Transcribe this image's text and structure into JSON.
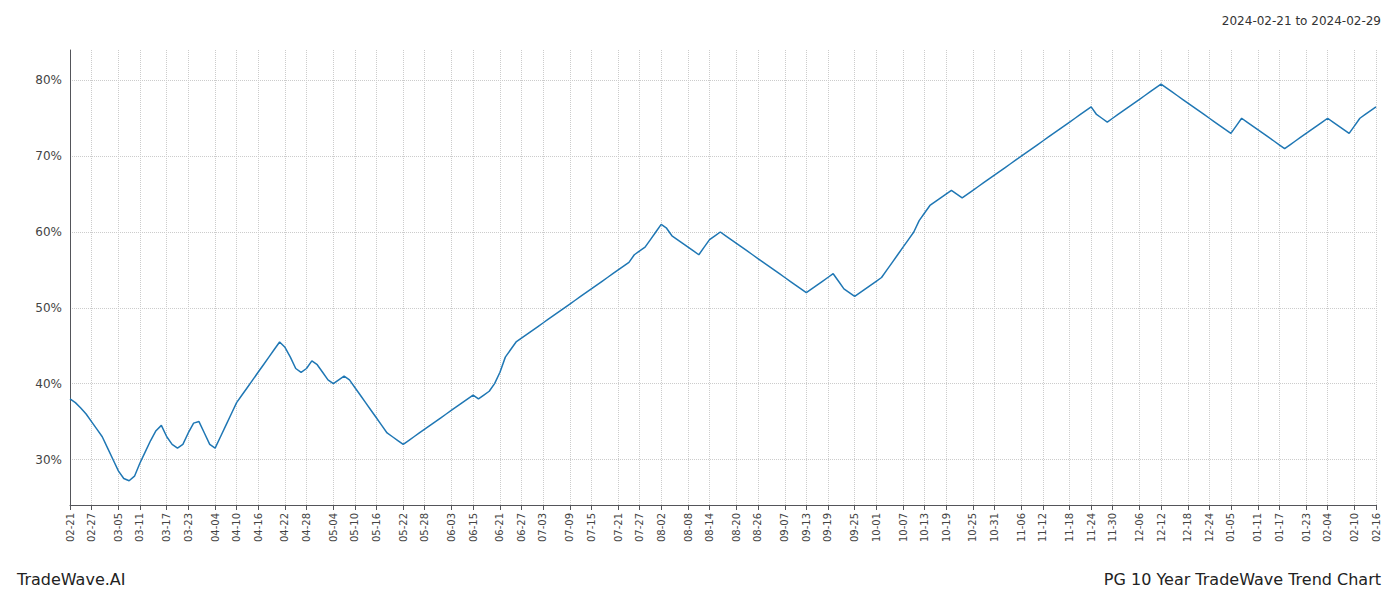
{
  "chart_data": {
    "type": "line",
    "title": "PG 10 Year TradeWave Trend Chart",
    "subtitle": "2024-02-21 to 2024-02-29",
    "annotations": [
      "TradeWave.AI"
    ],
    "categories": [
      "02-21",
      null,
      null,
      null,
      "02-27",
      null,
      null,
      null,
      null,
      "03-05",
      null,
      null,
      null,
      "03-11",
      null,
      null,
      null,
      null,
      "03-17",
      null,
      null,
      null,
      "03-23",
      null,
      null,
      null,
      null,
      "04-04",
      null,
      null,
      null,
      "04-10",
      null,
      null,
      null,
      "04-16",
      null,
      null,
      null,
      null,
      "04-22",
      null,
      null,
      null,
      "04-28",
      null,
      null,
      null,
      null,
      "05-04",
      null,
      null,
      null,
      "05-10",
      null,
      null,
      null,
      "05-16",
      null,
      null,
      null,
      null,
      "05-22",
      null,
      null,
      null,
      "05-28",
      null,
      null,
      null,
      null,
      "06-03",
      null,
      null,
      null,
      "06-15",
      null,
      null,
      null,
      null,
      "06-21",
      null,
      null,
      null,
      "06-27",
      null,
      null,
      null,
      "07-03",
      null,
      null,
      null,
      null,
      "07-09",
      null,
      null,
      null,
      "07-15",
      null,
      null,
      null,
      null,
      "07-21",
      null,
      null,
      null,
      "07-27",
      null,
      null,
      null,
      "08-02",
      null,
      null,
      null,
      null,
      "08-08",
      null,
      null,
      null,
      "08-14",
      null,
      null,
      null,
      null,
      "08-20",
      null,
      null,
      null,
      "08-26",
      null,
      null,
      null,
      null,
      "09-07",
      null,
      null,
      null,
      "09-13",
      null,
      null,
      null,
      "09-19",
      null,
      null,
      null,
      null,
      "09-25",
      null,
      null,
      null,
      "10-01",
      null,
      null,
      null,
      null,
      "10-07",
      null,
      null,
      null,
      "10-13",
      null,
      null,
      null,
      "10-19",
      null,
      null,
      null,
      null,
      "10-25",
      null,
      null,
      null,
      "10-31",
      null,
      null,
      null,
      null,
      "11-06",
      null,
      null,
      null,
      "11-12",
      null,
      null,
      null,
      null,
      "11-18",
      null,
      null,
      null,
      "11-24",
      null,
      null,
      null,
      "11-30",
      null,
      null,
      null,
      null,
      "12-06",
      null,
      null,
      null,
      "12-12",
      null,
      null,
      null,
      null,
      "12-18",
      null,
      null,
      null,
      "12-24",
      null,
      null,
      null,
      "01-05",
      null,
      null,
      null,
      null,
      "01-11",
      null,
      null,
      null,
      "01-17",
      null,
      null,
      null,
      null,
      "01-23",
      null,
      null,
      null,
      "02-04",
      null,
      null,
      null,
      null,
      "02-10",
      null,
      null,
      null,
      "02-16"
    ],
    "values": [
      38.0,
      37.5,
      36.8,
      36.0,
      35.0,
      34.0,
      33.0,
      31.5,
      30.0,
      28.5,
      27.5,
      27.2,
      27.8,
      29.5,
      31.0,
      32.5,
      33.8,
      34.5,
      33.0,
      32.0,
      31.5,
      32.0,
      33.5,
      34.8,
      35.0,
      33.5,
      32.0,
      31.5,
      33.0,
      34.5,
      36.0,
      37.5,
      38.5,
      39.5,
      40.5,
      41.5,
      42.5,
      43.5,
      44.5,
      45.5,
      44.8,
      43.5,
      42.0,
      41.5,
      42.0,
      43.0,
      42.5,
      41.5,
      40.5,
      40.0,
      40.5,
      41.0,
      40.5,
      39.5,
      38.5,
      37.5,
      36.5,
      35.5,
      34.5,
      33.5,
      33.0,
      32.5,
      32.0,
      32.5,
      33.0,
      33.5,
      34.0,
      34.5,
      35.0,
      35.5,
      36.0,
      36.5,
      37.0,
      37.5,
      38.0,
      38.5,
      38.0,
      38.5,
      39.0,
      40.0,
      41.5,
      43.5,
      44.5,
      45.5,
      46.0,
      46.5,
      47.0,
      47.5,
      48.0,
      48.5,
      49.0,
      49.5,
      50.0,
      50.5,
      51.0,
      51.5,
      52.0,
      52.5,
      53.0,
      53.5,
      54.0,
      54.5,
      55.0,
      55.5,
      56.0,
      57.0,
      57.5,
      58.0,
      59.0,
      60.0,
      61.0,
      60.5,
      59.5,
      59.0,
      58.5,
      58.0,
      57.5,
      57.0,
      58.0,
      59.0,
      59.5,
      60.0,
      59.5,
      59.0,
      58.5,
      58.0,
      57.5,
      57.0,
      56.5,
      56.0,
      55.5,
      55.0,
      54.5,
      54.0,
      53.5,
      53.0,
      52.5,
      52.0,
      52.5,
      53.0,
      53.5,
      54.0,
      54.5,
      53.5,
      52.5,
      52.0,
      51.5,
      52.0,
      52.5,
      53.0,
      53.5,
      54.0,
      55.0,
      56.0,
      57.0,
      58.0,
      59.0,
      60.0,
      61.5,
      62.5,
      63.5,
      64.0,
      64.5,
      65.0,
      65.5,
      65.0,
      64.5,
      65.0,
      65.5,
      66.0,
      66.5,
      67.0,
      67.5,
      68.0,
      68.5,
      69.0,
      69.5,
      70.0,
      70.5,
      71.0,
      71.5,
      72.0,
      72.5,
      73.0,
      73.5,
      74.0,
      74.5,
      75.0,
      75.5,
      76.0,
      76.5,
      75.5,
      75.0,
      74.5,
      75.0,
      75.5,
      76.0,
      76.5,
      77.0,
      77.5,
      78.0,
      78.5,
      79.0,
      79.5,
      79.0,
      78.5,
      78.0,
      77.5,
      77.0,
      76.5,
      76.0,
      75.5,
      75.0,
      74.5,
      74.0,
      73.5,
      73.0,
      74.0,
      75.0,
      74.5,
      74.0,
      73.5,
      73.0,
      72.5,
      72.0,
      71.5,
      71.0,
      71.5,
      72.0,
      72.5,
      73.0,
      73.5,
      74.0,
      74.5,
      75.0,
      74.5,
      74.0,
      73.5,
      73.0,
      74.0,
      75.0,
      75.5,
      76.0,
      76.5
    ],
    "color": "#1f77b4",
    "ylim": [
      24,
      84
    ],
    "yticks": [
      {
        "value": 30,
        "label": "30%"
      },
      {
        "value": 40,
        "label": "40%"
      },
      {
        "value": 50,
        "label": "50%"
      },
      {
        "value": 60,
        "label": "60%"
      },
      {
        "value": 70,
        "label": "70%"
      },
      {
        "value": 80,
        "label": "80%"
      }
    ],
    "grid": true
  }
}
